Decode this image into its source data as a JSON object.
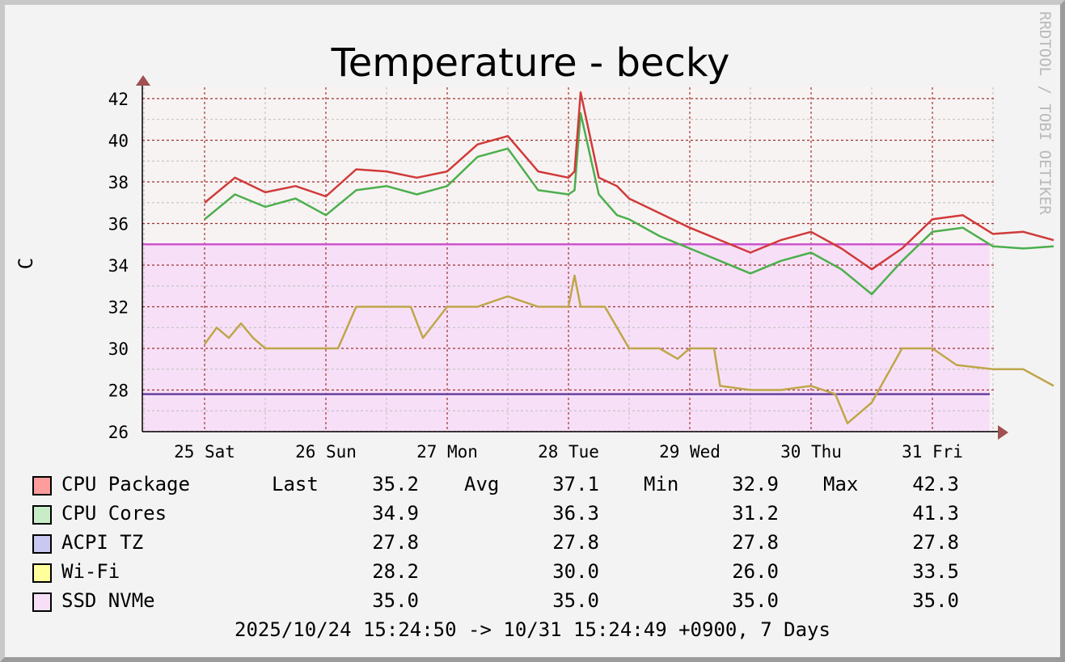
{
  "chart_data": {
    "type": "line",
    "title": "Temperature - becky",
    "ylabel": "C",
    "ylim": [
      26,
      42.6
    ],
    "y_ticks": [
      "26",
      "28",
      "30",
      "32",
      "34",
      "36",
      "38",
      "40",
      "42"
    ],
    "x_ticks": [
      "25 Sat",
      "26 Sun",
      "27 Mon",
      "28 Tue",
      "29 Wed",
      "30 Thu",
      "31 Fri"
    ],
    "xlim_days": [
      0,
      7
    ],
    "grid": true,
    "watermark": "RRDTOOL / TOBI OETIKER",
    "series": [
      {
        "name": "CPU Package",
        "color": "#d03a3a",
        "swatch": "#ff9c9c",
        "style": "line",
        "x": [
          0.0,
          0.25,
          0.5,
          0.75,
          1.0,
          1.25,
          1.5,
          1.75,
          2.0,
          2.25,
          2.5,
          2.75,
          3.0,
          3.05,
          3.1,
          3.25,
          3.4,
          3.5,
          3.75,
          4.0,
          4.25,
          4.5,
          4.75,
          5.0,
          5.25,
          5.5,
          5.75,
          6.0,
          6.25,
          6.5,
          6.75,
          7.0
        ],
        "values": [
          37.0,
          38.2,
          37.5,
          37.8,
          37.3,
          38.6,
          38.5,
          38.2,
          38.5,
          39.8,
          40.2,
          38.5,
          38.2,
          38.5,
          42.3,
          38.2,
          37.8,
          37.2,
          36.5,
          35.8,
          35.2,
          34.6,
          35.2,
          35.6,
          34.8,
          33.8,
          34.8,
          36.2,
          36.4,
          35.5,
          35.6,
          35.2
        ]
      },
      {
        "name": "CPU Cores",
        "color": "#4caf4c",
        "swatch": "#c8ecc8",
        "style": "line",
        "x": [
          0.0,
          0.25,
          0.5,
          0.75,
          1.0,
          1.25,
          1.5,
          1.75,
          2.0,
          2.25,
          2.5,
          2.75,
          3.0,
          3.05,
          3.1,
          3.25,
          3.4,
          3.5,
          3.75,
          4.0,
          4.25,
          4.5,
          4.75,
          5.0,
          5.25,
          5.5,
          5.75,
          6.0,
          6.25,
          6.5,
          6.75,
          7.0
        ],
        "values": [
          36.2,
          37.4,
          36.8,
          37.2,
          36.4,
          37.6,
          37.8,
          37.4,
          37.8,
          39.2,
          39.6,
          37.6,
          37.4,
          37.6,
          41.3,
          37.4,
          36.4,
          36.2,
          35.4,
          34.8,
          34.2,
          33.6,
          34.2,
          34.6,
          33.8,
          32.6,
          34.2,
          35.6,
          35.8,
          34.9,
          34.8,
          34.9
        ]
      },
      {
        "name": "ACPI TZ",
        "color": "#6a40a0",
        "swatch": "#c8c8f0",
        "style": "hline",
        "x": [
          0,
          7
        ],
        "values": [
          27.8,
          27.8
        ]
      },
      {
        "name": "Wi-Fi",
        "color": "#bfa64a",
        "swatch": "#ffff9c",
        "style": "line",
        "x": [
          0.0,
          0.1,
          0.2,
          0.3,
          0.4,
          0.5,
          0.75,
          0.9,
          1.0,
          1.1,
          1.25,
          1.5,
          1.7,
          1.8,
          2.0,
          2.25,
          2.5,
          2.75,
          2.9,
          3.0,
          3.05,
          3.1,
          3.3,
          3.5,
          3.75,
          3.9,
          4.0,
          4.2,
          4.25,
          4.5,
          4.75,
          5.0,
          5.2,
          5.3,
          5.5,
          5.75,
          6.0,
          6.2,
          6.5,
          6.75,
          7.0
        ],
        "values": [
          30.2,
          31.0,
          30.5,
          31.2,
          30.5,
          30.0,
          30.0,
          30.0,
          30.0,
          30.0,
          32.0,
          32.0,
          32.0,
          30.5,
          32.0,
          32.0,
          32.5,
          32.0,
          32.0,
          32.0,
          33.5,
          32.0,
          32.0,
          30.0,
          30.0,
          29.5,
          30.0,
          30.0,
          28.2,
          28.0,
          28.0,
          28.2,
          27.8,
          26.4,
          27.4,
          30.0,
          30.0,
          29.2,
          29.0,
          29.0,
          28.2
        ]
      },
      {
        "name": "SSD NVMe",
        "color": "#cc55cc",
        "swatch": "#f7e0f7",
        "style": "area",
        "x": [
          0,
          7
        ],
        "values": [
          35.0,
          35.0
        ]
      }
    ]
  },
  "legend": {
    "headers": {
      "last": "Last",
      "avg": "Avg",
      "min": "Min",
      "max": "Max"
    },
    "rows": [
      {
        "name": "CPU Package",
        "swatch": "#ff9c9c",
        "last": "35.2",
        "avg": "37.1",
        "min": "32.9",
        "max": "42.3"
      },
      {
        "name": "CPU Cores",
        "swatch": "#c8ecc8",
        "last": "34.9",
        "avg": "36.3",
        "min": "31.2",
        "max": "41.3"
      },
      {
        "name": "ACPI TZ",
        "swatch": "#c8c8f0",
        "last": "27.8",
        "avg": "27.8",
        "min": "27.8",
        "max": "27.8"
      },
      {
        "name": "Wi-Fi",
        "swatch": "#ffff9c",
        "last": "28.2",
        "avg": "30.0",
        "min": "26.0",
        "max": "33.5"
      },
      {
        "name": "SSD NVMe",
        "swatch": "#f7e0f7",
        "last": "35.0",
        "avg": "35.0",
        "min": "35.0",
        "max": "35.0"
      }
    ]
  },
  "footer": "2025/10/24 15:24:50 -> 10/31 15:24:49 +0900, 7 Days"
}
